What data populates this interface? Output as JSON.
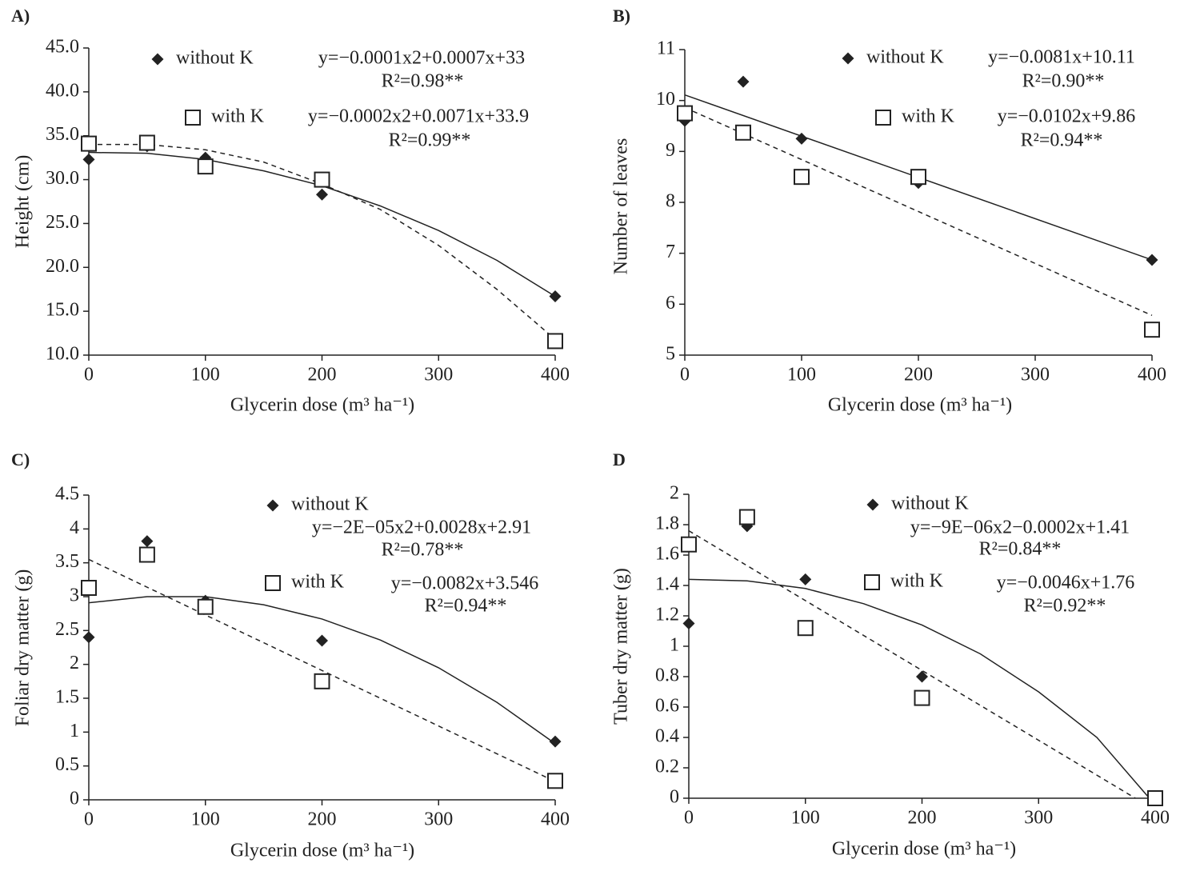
{
  "chart_data": [
    {
      "type": "scatter",
      "label": "A)",
      "x_label": "Glycerin dose (m³ ha⁻¹)",
      "y_label": "Height (cm)",
      "x": [
        0,
        50,
        100,
        200,
        400
      ],
      "xlim": [
        0,
        400
      ],
      "xticks": [
        0,
        100,
        200,
        300,
        400
      ],
      "ylim": [
        10,
        45
      ],
      "yticks": [
        {
          "value": 10,
          "label": "10.0"
        },
        {
          "value": 15,
          "label": "15.0"
        },
        {
          "value": 20,
          "label": "20.0"
        },
        {
          "value": 25,
          "label": "25.0"
        },
        {
          "value": 30,
          "label": "30.0"
        },
        {
          "value": 35,
          "label": "35.0"
        },
        {
          "value": 40,
          "label": "40.0"
        },
        {
          "value": 45,
          "label": "45.0"
        }
      ],
      "series": [
        {
          "name": "without K",
          "marker": "diamond",
          "color": "#222222",
          "values": [
            32.3,
            33.8,
            32.5,
            28.3,
            16.7
          ],
          "equation": "y=−0.0001x2+0.0007x+33",
          "r2": "R²=0.98**",
          "trend": {
            "x": [
              0,
              50,
              100,
              150,
              200,
              250,
              300,
              350,
              400
            ],
            "values": [
              33.1,
              33.0,
              32.3,
              31.0,
              29.3,
              27.0,
              24.2,
              20.8,
              16.7
            ],
            "dashed": false
          }
        },
        {
          "name": "with K",
          "marker": "square",
          "color": "#222222",
          "values": [
            34.1,
            34.2,
            31.5,
            30.0,
            11.6
          ],
          "equation": "y=−0.0002x2+0.0071x+33.9",
          "r2": "R²=0.99**",
          "trend": {
            "x": [
              0,
              50,
              100,
              150,
              200,
              250,
              300,
              350,
              400
            ],
            "values": [
              34.0,
              34.0,
              33.4,
              32.0,
              29.5,
              26.6,
              22.5,
              17.5,
              11.8
            ],
            "dashed": true
          }
        }
      ]
    },
    {
      "type": "scatter",
      "label": "B)",
      "x_label": "Glycerin dose (m³ ha⁻¹)",
      "y_label": "Number of leaves",
      "x": [
        0,
        50,
        100,
        200,
        400
      ],
      "xlim": [
        0,
        400
      ],
      "xticks": [
        0,
        100,
        200,
        300,
        400
      ],
      "ylim": [
        5,
        11
      ],
      "yticks": [
        5,
        6,
        7,
        8,
        9,
        10,
        11
      ],
      "series": [
        {
          "name": "without K",
          "marker": "diamond",
          "color": "#222222",
          "values": [
            9.6,
            10.37,
            9.25,
            8.38,
            6.87
          ],
          "equation": "y=−0.0081x+10.11",
          "r2": "R²=0.90**",
          "trend": {
            "x": [
              0,
              400
            ],
            "values": [
              10.11,
              6.87
            ],
            "dashed": false
          }
        },
        {
          "name": "with K",
          "marker": "square",
          "color": "#222222",
          "values": [
            9.75,
            9.37,
            8.5,
            8.5,
            5.5
          ],
          "equation": "y=−0.0102x+9.86",
          "r2": "R²=0.94**",
          "trend": {
            "x": [
              0,
              400
            ],
            "values": [
              9.86,
              5.78
            ],
            "dashed": true
          }
        }
      ]
    },
    {
      "type": "scatter",
      "label": "C)",
      "x_label": "Glycerin dose (m³ ha⁻¹)",
      "y_label": "Foliar dry matter (g)",
      "x": [
        0,
        50,
        100,
        200,
        400
      ],
      "xlim": [
        0,
        400
      ],
      "xticks": [
        0,
        100,
        200,
        300,
        400
      ],
      "ylim": [
        0,
        4.5
      ],
      "yticks": [
        0,
        0.5,
        1,
        1.5,
        2,
        2.5,
        3,
        3.5,
        4,
        4.5
      ],
      "series": [
        {
          "name": "without K",
          "marker": "diamond",
          "color": "#222222",
          "values": [
            2.4,
            3.82,
            2.94,
            2.35,
            0.86
          ],
          "equation": "y=−2E−05x2+0.0028x+2.91",
          "r2": "R²=0.78**",
          "trend": {
            "x": [
              0,
              50,
              100,
              150,
              200,
              250,
              300,
              350,
              400
            ],
            "values": [
              2.91,
              3.0,
              3.0,
              2.88,
              2.67,
              2.36,
              1.95,
              1.44,
              0.83
            ],
            "dashed": false
          }
        },
        {
          "name": "with K",
          "marker": "square",
          "color": "#222222",
          "values": [
            3.13,
            3.62,
            2.85,
            1.75,
            0.28
          ],
          "equation": "y=−0.0082x+3.546",
          "r2": "R²=0.94**",
          "trend": {
            "x": [
              0,
              400
            ],
            "values": [
              3.55,
              0.27
            ],
            "dashed": true
          }
        }
      ]
    },
    {
      "type": "scatter",
      "label": "D",
      "x_label": "Glycerin dose (m³ ha⁻¹)",
      "y_label": "Tuber dry matter (g)",
      "x": [
        0,
        50,
        100,
        200,
        400
      ],
      "xlim": [
        0,
        400
      ],
      "xticks": [
        0,
        100,
        200,
        300,
        400
      ],
      "ylim": [
        0,
        2
      ],
      "yticks": [
        0,
        0.2,
        0.4,
        0.6,
        0.8,
        1,
        1.2,
        1.4,
        1.6,
        1.8,
        2
      ],
      "series": [
        {
          "name": "without K",
          "marker": "diamond",
          "color": "#222222",
          "values": [
            1.15,
            1.79,
            1.44,
            0.8,
            0
          ],
          "equation": "y=−9E−06x2−0.0002x+1.41",
          "r2": "R²=0.84**",
          "trend": {
            "x": [
              0,
              50,
              100,
              150,
              200,
              250,
              300,
              350,
              395
            ],
            "values": [
              1.44,
              1.43,
              1.38,
              1.28,
              1.14,
              0.95,
              0.7,
              0.4,
              0
            ],
            "dashed": false
          }
        },
        {
          "name": "with K",
          "marker": "square",
          "color": "#222222",
          "values": [
            1.67,
            1.85,
            1.12,
            0.66,
            0
          ],
          "equation": "y=−0.0046x+1.76",
          "r2": "R²=0.92**",
          "trend": {
            "x": [
              0,
              383
            ],
            "values": [
              1.76,
              0
            ],
            "dashed": true
          }
        }
      ]
    }
  ]
}
